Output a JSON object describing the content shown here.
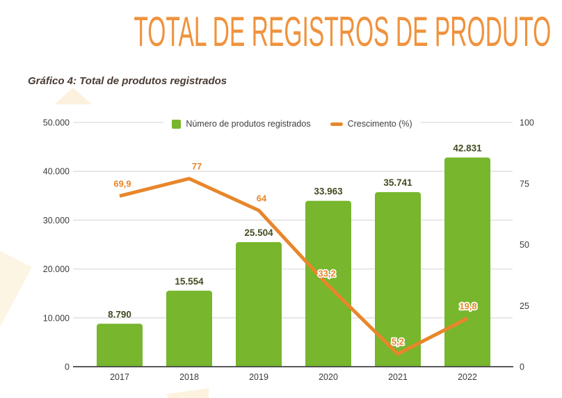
{
  "page": {
    "title": "TOTAL DE REGISTROS DE PRODUTO",
    "subtitle": "Gráfico 4: Total de produtos registrados"
  },
  "colors": {
    "title_orange": "#f0923c",
    "bar_green": "#77b62d",
    "line_orange": "#e8862b",
    "bar_label": "#414c20",
    "axis_text": "#3a3a3a",
    "grid_line": "#dcdcdc",
    "axis_line": "#424242",
    "subtitle_text": "#4a3a32",
    "deco_cream": "#fbf0da"
  },
  "chart_data": {
    "type": "bar",
    "subtype": "combo-bar-line",
    "title": "Gráfico 4: Total de produtos registrados",
    "categories": [
      "2017",
      "2018",
      "2019",
      "2020",
      "2021",
      "2022"
    ],
    "series": [
      {
        "name": "Número de produtos registrados",
        "type": "bar",
        "axis": "left",
        "color": "#77b62d",
        "values": [
          8790,
          15554,
          25504,
          33963,
          35741,
          42831
        ],
        "labels": [
          "8.790",
          "15.554",
          "25.504",
          "33.963",
          "35.741",
          "42.831"
        ]
      },
      {
        "name": "Crescimento (%)",
        "type": "line",
        "axis": "right",
        "color": "#e8862b",
        "values": [
          69.9,
          77,
          64,
          33.2,
          5.2,
          19.8
        ],
        "labels": [
          "69,9",
          "77",
          "64",
          "33,2",
          "5,2",
          "19,8"
        ]
      }
    ],
    "left_axis": {
      "min": 0,
      "max": 50000,
      "ticks": [
        "0",
        "10.000",
        "20.000",
        "30.000",
        "40.000",
        "50.000"
      ]
    },
    "right_axis": {
      "min": 0,
      "max": 100,
      "ticks": [
        "0",
        "25",
        "50",
        "75",
        "100"
      ]
    },
    "grid": true,
    "legend_position": "top-center"
  }
}
